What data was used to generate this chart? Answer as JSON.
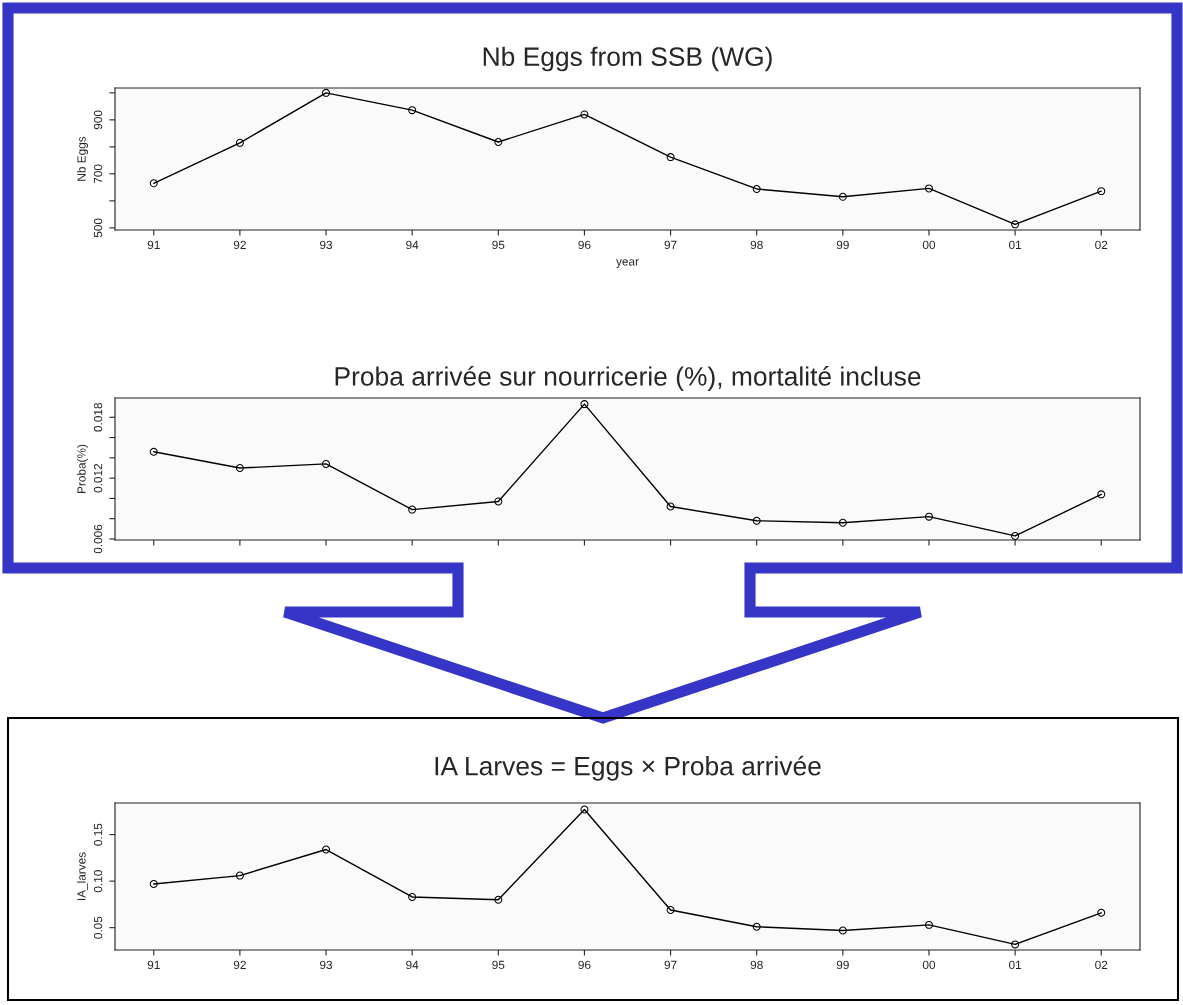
{
  "chart_data": [
    {
      "type": "line",
      "title": "Nb Eggs from SSB (WG)",
      "xlabel": "year",
      "ylabel": "Nb Eggs",
      "categories": [
        "91",
        "92",
        "93",
        "94",
        "95",
        "96",
        "97",
        "98",
        "99",
        "00",
        "01",
        "02"
      ],
      "series": [
        {
          "color": "#000000",
          "values": [
            665,
            815,
            1000,
            936,
            818,
            920,
            762,
            644,
            615,
            646,
            513,
            636
          ]
        }
      ],
      "ylim": [
        492,
        1018
      ],
      "yticks": [
        500,
        {
          "value": 600,
          "label": null
        },
        700,
        {
          "value": 800,
          "label": null
        },
        900,
        {
          "value": 1000,
          "label": null
        }
      ],
      "marker": "circle",
      "line_style": "solid",
      "grid": false
    },
    {
      "type": "line",
      "title": "Proba arrivée sur nourricerie (%), mortalité incluse",
      "ylabel": "Proba(%)",
      "categories": [
        "91",
        "92",
        "93",
        "94",
        "95",
        "96",
        "97",
        "98",
        "99",
        "00",
        "01",
        "02"
      ],
      "series": [
        {
          "color": "#000000",
          "values": [
            0.0146,
            0.013,
            0.0134,
            0.0089,
            0.0097,
            0.0193,
            0.0092,
            0.0078,
            0.0076,
            0.0082,
            0.0063,
            0.0104
          ]
        }
      ],
      "ylim": [
        0.0059,
        0.0199
      ],
      "yticks": [
        0.006,
        {
          "value": 0.008,
          "label": null
        },
        {
          "value": 0.01,
          "label": null
        },
        0.012,
        {
          "value": 0.014,
          "label": null
        },
        {
          "value": 0.016,
          "label": null
        },
        0.018
      ],
      "tick_labels": "y",
      "marker": "circle",
      "line_style": "solid",
      "grid": false
    },
    {
      "type": "line",
      "title": "IA Larves = Eggs × Proba arrivée",
      "ylabel": "IA_larves",
      "categories": [
        "91",
        "92",
        "93",
        "94",
        "95",
        "96",
        "97",
        "98",
        "99",
        "00",
        "01",
        "02"
      ],
      "series": [
        {
          "color": "#000000",
          "values": [
            0.097,
            0.106,
            0.134,
            0.083,
            0.08,
            0.177,
            0.069,
            0.051,
            0.047,
            0.053,
            0.032,
            0.066
          ]
        }
      ],
      "ylim": [
        0.026,
        0.184
      ],
      "yticks": [
        {
          "value": 0.05,
          "label": "0.05"
        },
        {
          "value": 0.1,
          "label": "0.10"
        },
        {
          "value": 0.15,
          "label": "0.15"
        }
      ],
      "marker": "circle",
      "line_style": "solid",
      "grid": false
    }
  ]
}
